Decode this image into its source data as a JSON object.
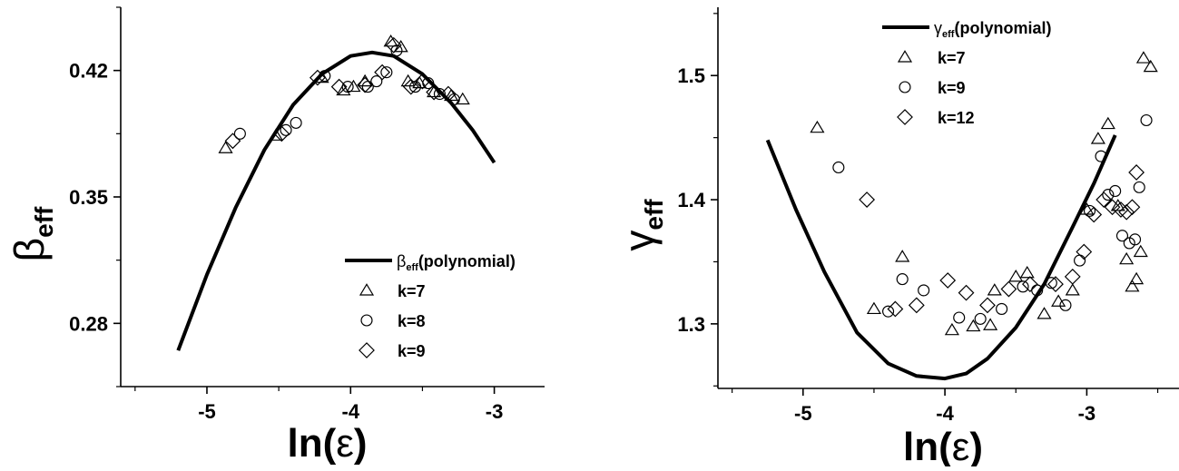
{
  "chart_data": [
    {
      "type": "scatter",
      "x_symbol": "ln",
      "x_paren_open": "(",
      "x_var": "ε",
      "x_paren_close": ")",
      "y_symbol": "β",
      "y_sub": "eff",
      "xlim": [
        -5.6,
        -2.65
      ],
      "ylim": [
        0.245,
        0.455
      ],
      "x_ticks": [
        -5,
        -4,
        -3
      ],
      "x_tick_labels": [
        "-5",
        "-4",
        "-3"
      ],
      "y_ticks": [
        0.28,
        0.35,
        0.42
      ],
      "y_tick_labels": [
        "0.28",
        "0.35",
        "0.42"
      ],
      "legend_position": "bottom-right",
      "curve": {
        "label_symbol": "β",
        "label_sub": "eff",
        "label_rest": "(polynomial)",
        "color": "#000000",
        "x": [
          -5.2,
          -5.0,
          -4.8,
          -4.6,
          -4.4,
          -4.2,
          -4.0,
          -3.85,
          -3.7,
          -3.5,
          -3.3,
          -3.15,
          -3.0
        ],
        "y": [
          0.265,
          0.307,
          0.344,
          0.376,
          0.401,
          0.418,
          0.428,
          0.43,
          0.428,
          0.418,
          0.402,
          0.387,
          0.369
        ]
      },
      "series": [
        {
          "name": "k=7",
          "marker": "triangle",
          "x": [
            -4.87,
            -4.52,
            -4.2,
            -4.05,
            -3.98,
            -3.9,
            -3.72,
            -3.65,
            -3.6,
            -3.52,
            -3.42,
            -3.3,
            -3.22
          ],
          "y": [
            0.377,
            0.384,
            0.416,
            0.409,
            0.411,
            0.414,
            0.436,
            0.433,
            0.414,
            0.413,
            0.408,
            0.406,
            0.404
          ]
        },
        {
          "name": "k=8",
          "marker": "circle",
          "x": [
            -4.77,
            -4.45,
            -4.38,
            -4.18,
            -4.02,
            -3.88,
            -3.82,
            -3.75,
            -3.68,
            -3.55,
            -3.46,
            -3.38,
            -3.28
          ],
          "y": [
            0.385,
            0.387,
            0.391,
            0.417,
            0.411,
            0.411,
            0.414,
            0.419,
            0.431,
            0.411,
            0.413,
            0.407,
            0.404
          ]
        },
        {
          "name": "k=9",
          "marker": "diamond",
          "x": [
            -4.82,
            -4.48,
            -4.23,
            -4.08,
            -3.9,
            -3.78,
            -3.7,
            -3.58,
            -3.5,
            -3.42,
            -3.32
          ],
          "y": [
            0.381,
            0.385,
            0.416,
            0.411,
            0.412,
            0.419,
            0.434,
            0.411,
            0.414,
            0.408,
            0.407
          ]
        }
      ]
    },
    {
      "type": "scatter",
      "x_symbol": "ln",
      "x_paren_open": "(",
      "x_var": "ε",
      "x_paren_close": ")",
      "y_symbol": "γ",
      "y_sub": "eff",
      "xlim": [
        -5.6,
        -2.35
      ],
      "ylim": [
        1.248,
        1.555
      ],
      "x_ticks": [
        -5,
        -4,
        -3
      ],
      "x_tick_labels": [
        "-5",
        "-4",
        "-3"
      ],
      "y_ticks": [
        1.3,
        1.4,
        1.5
      ],
      "y_tick_labels": [
        "1.3",
        "1.4",
        "1.5"
      ],
      "legend_position": "top-left",
      "curve": {
        "label_symbol": "γ",
        "label_sub": "eff",
        "label_rest": "(polynomial)",
        "color": "#000000",
        "x": [
          -5.25,
          -5.05,
          -4.85,
          -4.62,
          -4.4,
          -4.2,
          -4.0,
          -3.85,
          -3.7,
          -3.5,
          -3.3,
          -3.1,
          -2.95,
          -2.8
        ],
        "y": [
          1.448,
          1.392,
          1.342,
          1.293,
          1.268,
          1.258,
          1.256,
          1.26,
          1.272,
          1.297,
          1.332,
          1.378,
          1.413,
          1.452
        ]
      },
      "series": [
        {
          "name": "k=7",
          "marker": "triangle",
          "x": [
            -4.9,
            -4.5,
            -4.3,
            -3.95,
            -3.8,
            -3.68,
            -3.65,
            -3.5,
            -3.42,
            -3.3,
            -3.2,
            -3.1,
            -3.0,
            -2.92,
            -2.85,
            -2.78,
            -2.72,
            -2.68,
            -2.65,
            -2.62,
            -2.6,
            -2.55
          ],
          "y": [
            1.458,
            1.312,
            1.354,
            1.295,
            1.298,
            1.299,
            1.327,
            1.338,
            1.341,
            1.308,
            1.318,
            1.327,
            1.392,
            1.449,
            1.461,
            1.395,
            1.352,
            1.33,
            1.336,
            1.358,
            1.514,
            1.507
          ]
        },
        {
          "name": "k=9",
          "marker": "circle",
          "x": [
            -4.75,
            -4.4,
            -4.3,
            -4.15,
            -3.9,
            -3.75,
            -3.6,
            -3.45,
            -3.35,
            -3.25,
            -3.15,
            -3.05,
            -2.98,
            -2.9,
            -2.85,
            -2.8,
            -2.75,
            -2.7,
            -2.66,
            -2.63,
            -2.58
          ],
          "y": [
            1.426,
            1.31,
            1.336,
            1.327,
            1.305,
            1.304,
            1.312,
            1.33,
            1.327,
            1.333,
            1.315,
            1.351,
            1.391,
            1.435,
            1.404,
            1.407,
            1.371,
            1.365,
            1.368,
            1.41,
            1.464
          ]
        },
        {
          "name": "k=12",
          "marker": "diamond",
          "x": [
            -4.55,
            -4.35,
            -4.2,
            -3.98,
            -3.85,
            -3.7,
            -3.55,
            -3.4,
            -3.22,
            -3.1,
            -3.02,
            -2.95,
            -2.88,
            -2.82,
            -2.76,
            -2.72,
            -2.68,
            -2.65
          ],
          "y": [
            1.4,
            1.312,
            1.315,
            1.335,
            1.325,
            1.315,
            1.328,
            1.332,
            1.332,
            1.338,
            1.358,
            1.388,
            1.4,
            1.394,
            1.392,
            1.39,
            1.394,
            1.422
          ]
        }
      ]
    }
  ]
}
